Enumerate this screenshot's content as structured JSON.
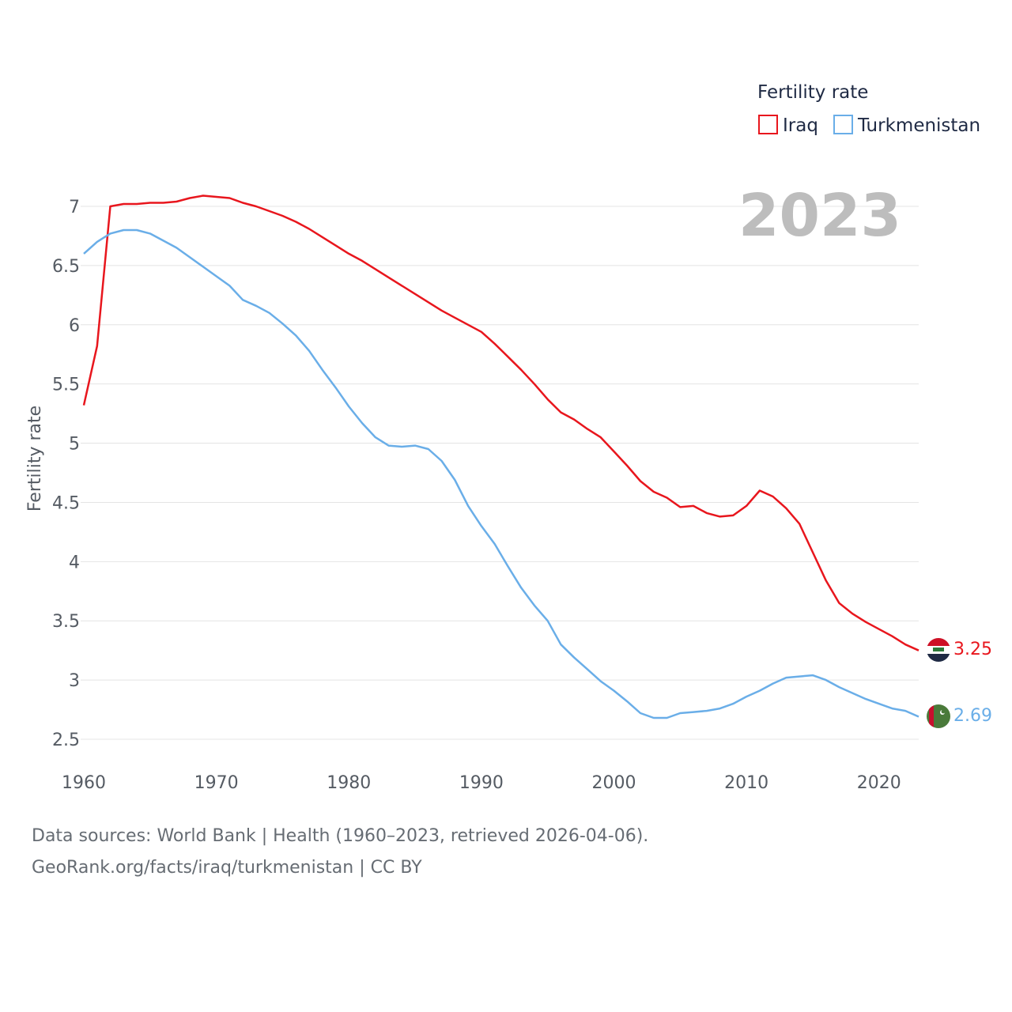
{
  "chart_data": {
    "type": "line",
    "title": "Fertility rate",
    "ylabel": "Fertility rate",
    "xlabel": "",
    "year_label": "2023",
    "xlim": [
      1960,
      2023
    ],
    "ylim": [
      2.5,
      7
    ],
    "x_ticks": [
      "1960",
      "1970",
      "1980",
      "1990",
      "2000",
      "2010",
      "2020"
    ],
    "y_ticks": [
      "2.5",
      "3",
      "3.5",
      "4",
      "4.5",
      "5",
      "5.5",
      "6",
      "6.5",
      "7"
    ],
    "legend_title": "Fertility rate",
    "x": [
      1960,
      1961,
      1962,
      1963,
      1964,
      1965,
      1966,
      1967,
      1968,
      1969,
      1970,
      1971,
      1972,
      1973,
      1974,
      1975,
      1976,
      1977,
      1978,
      1979,
      1980,
      1981,
      1982,
      1983,
      1984,
      1985,
      1986,
      1987,
      1988,
      1989,
      1990,
      1991,
      1992,
      1993,
      1994,
      1995,
      1996,
      1997,
      1998,
      1999,
      2000,
      2001,
      2002,
      2003,
      2004,
      2005,
      2006,
      2007,
      2008,
      2009,
      2010,
      2011,
      2012,
      2013,
      2014,
      2015,
      2016,
      2017,
      2018,
      2019,
      2020,
      2021,
      2022,
      2023
    ],
    "series": [
      {
        "name": "Iraq",
        "color": "#e8161d",
        "end_label": "3.25",
        "values": [
          5.32,
          5.82,
          7.0,
          7.02,
          7.02,
          7.03,
          7.03,
          7.04,
          7.07,
          7.09,
          7.08,
          7.07,
          7.03,
          7.0,
          6.96,
          6.92,
          6.87,
          6.81,
          6.74,
          6.67,
          6.6,
          6.54,
          6.47,
          6.4,
          6.33,
          6.26,
          6.19,
          6.12,
          6.06,
          6.0,
          5.94,
          5.84,
          5.73,
          5.62,
          5.5,
          5.37,
          5.26,
          5.2,
          5.12,
          5.05,
          4.93,
          4.81,
          4.68,
          4.59,
          4.54,
          4.46,
          4.47,
          4.41,
          4.38,
          4.39,
          4.47,
          4.6,
          4.55,
          4.45,
          4.32,
          4.08,
          3.84,
          3.65,
          3.56,
          3.49,
          3.43,
          3.37,
          3.3,
          3.25
        ]
      },
      {
        "name": "Turkmenistan",
        "color": "#6aaee8",
        "end_label": "2.69",
        "values": [
          6.6,
          6.7,
          6.77,
          6.8,
          6.8,
          6.77,
          6.71,
          6.65,
          6.57,
          6.49,
          6.41,
          6.33,
          6.21,
          6.16,
          6.1,
          6.01,
          5.91,
          5.78,
          5.62,
          5.47,
          5.31,
          5.17,
          5.05,
          4.98,
          4.97,
          4.98,
          4.95,
          4.85,
          4.69,
          4.47,
          4.3,
          4.15,
          3.96,
          3.78,
          3.63,
          3.5,
          3.3,
          3.19,
          3.09,
          2.99,
          2.91,
          2.82,
          2.72,
          2.68,
          2.68,
          2.72,
          2.73,
          2.74,
          2.76,
          2.8,
          2.86,
          2.91,
          2.97,
          3.02,
          3.03,
          3.04,
          3.0,
          2.94,
          2.89,
          2.84,
          2.8,
          2.76,
          2.74,
          2.69
        ]
      }
    ]
  },
  "flags": {
    "iraq": {
      "name": "iraq-flag-icon",
      "colors": [
        "#ce1126",
        "#ffffff",
        "#1f2a44"
      ],
      "script": "الله"
    },
    "turkmenistan": {
      "name": "turkmenistan-flag-icon",
      "colors": [
        "#4a7a3a",
        "#c8102e",
        "#ffffff"
      ]
    }
  },
  "footer": {
    "line1": "Data sources: World Bank | Health (1960–2023, retrieved 2026-04-06).",
    "line2": "GeoRank.org/facts/iraq/turkmenistan | CC BY"
  }
}
